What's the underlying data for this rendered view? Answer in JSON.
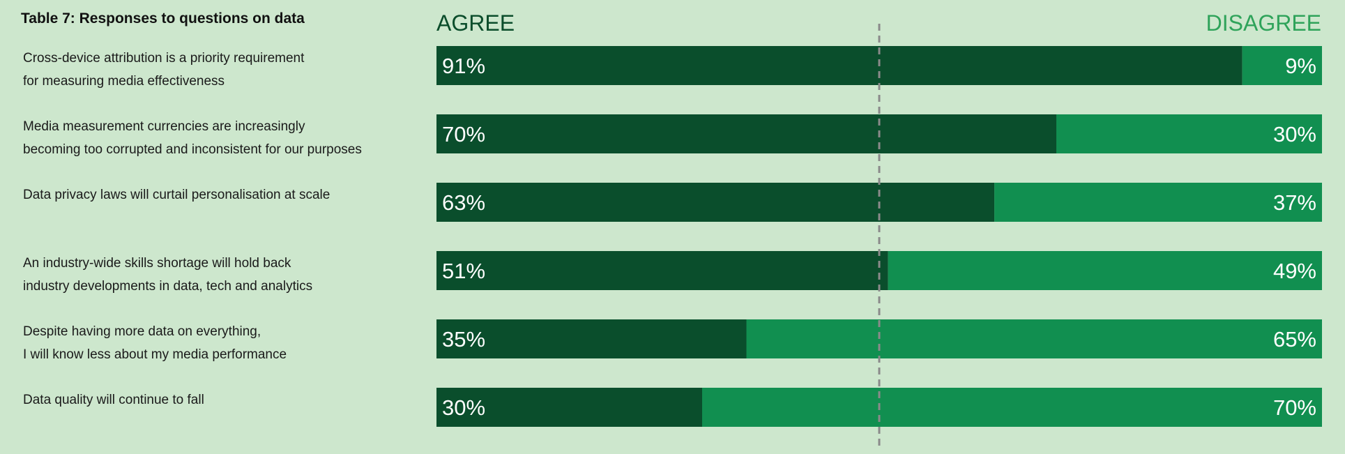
{
  "chart_data": {
    "type": "bar",
    "orientation": "horizontal",
    "stacked": true,
    "title": "Table 7: Responses to questions on data",
    "categories": [
      [
        "Cross-device attribution is a priority requirement",
        "for measuring media effectiveness"
      ],
      [
        "Media measurement currencies are increasingly",
        "becoming too corrupted and inconsistent for our purposes"
      ],
      [
        "Data privacy laws will curtail personalisation at scale"
      ],
      [
        "An industry-wide skills shortage will hold back",
        "industry developments in data, tech and analytics"
      ],
      [
        "Despite having more data on everything,",
        "I will know less about my media performance"
      ],
      [
        "Data quality will continue to fall"
      ]
    ],
    "series": [
      {
        "name": "AGREE",
        "values": [
          91,
          70,
          63,
          51,
          35,
          30
        ],
        "color": "#0a4e2c"
      },
      {
        "name": "DISAGREE",
        "values": [
          9,
          30,
          37,
          49,
          65,
          70
        ],
        "color": "#118f50"
      }
    ],
    "value_labels": {
      "agree": [
        "91%",
        "70%",
        "63%",
        "51%",
        "35%",
        "30%"
      ],
      "disagree": [
        "9%",
        "30%",
        "37%",
        "49%",
        "65%",
        "70%"
      ]
    },
    "xlim": [
      0,
      100
    ],
    "reference_line": 50,
    "grid": false
  }
}
